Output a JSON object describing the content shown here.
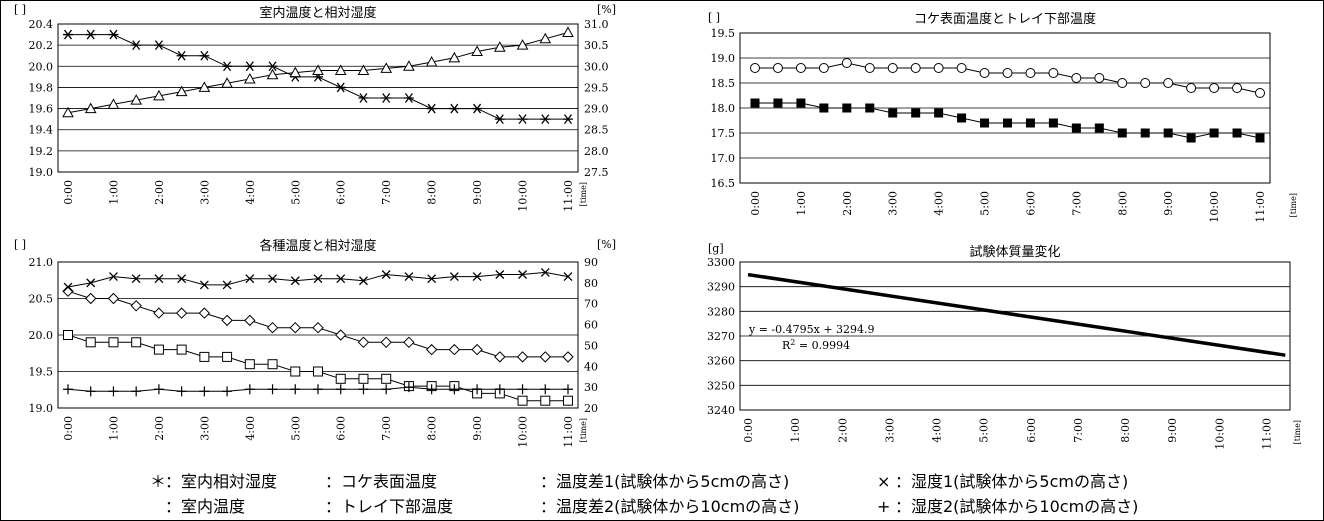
{
  "chart_data": [
    {
      "type": "line",
      "title": "室内温度と相対湿度",
      "ylabel_left": "[ ]",
      "ylabel_right": "[%]",
      "xlabel": "[time]",
      "x": [
        "0:00",
        "0:30",
        "1:00",
        "1:30",
        "2:00",
        "2:30",
        "3:00",
        "3:30",
        "4:00",
        "4:30",
        "5:00",
        "5:30",
        "6:00",
        "6:30",
        "7:00",
        "7:30",
        "8:00",
        "8:30",
        "9:00",
        "9:30",
        "10:00",
        "10:30",
        "11:00"
      ],
      "x_tick_labels": [
        "0:00",
        "1:00",
        "2:00",
        "3:00",
        "4:00",
        "5:00",
        "6:00",
        "7:00",
        "8:00",
        "9:00",
        "10:00",
        "11:00"
      ],
      "ylim_left": [
        19.0,
        20.4
      ],
      "ylim_right": [
        27.5,
        31.0
      ],
      "yticks_left": [
        "19.0",
        "19.2",
        "19.4",
        "19.6",
        "19.8",
        "20.0",
        "20.2",
        "20.4"
      ],
      "yticks_right": [
        "27.5",
        "28.0",
        "28.5",
        "29.0",
        "29.5",
        "30.0",
        "30.5",
        "31.0"
      ],
      "grid": true,
      "series": [
        {
          "marker": "asterisk",
          "axis": "left",
          "values": [
            20.3,
            20.3,
            20.3,
            20.2,
            20.2,
            20.1,
            20.1,
            20.0,
            20.0,
            20.0,
            19.9,
            19.9,
            19.8,
            19.7,
            19.7,
            19.7,
            19.6,
            19.6,
            19.6,
            19.5,
            19.5,
            19.5,
            19.5
          ]
        },
        {
          "marker": "triangle",
          "axis": "right",
          "values": [
            28.9,
            29.0,
            29.1,
            29.2,
            29.3,
            29.4,
            29.5,
            29.6,
            29.7,
            29.8,
            29.85,
            29.9,
            29.9,
            29.9,
            29.95,
            30.0,
            30.1,
            30.2,
            30.35,
            30.45,
            30.5,
            30.65,
            30.8
          ]
        }
      ]
    },
    {
      "type": "line",
      "title": "コケ表面温度とトレイ下部温度",
      "ylabel_left": "[ ]",
      "xlabel": "[time]",
      "x": [
        "0:00",
        "0:30",
        "1:00",
        "1:30",
        "2:00",
        "2:30",
        "3:00",
        "3:30",
        "4:00",
        "4:30",
        "5:00",
        "5:30",
        "6:00",
        "6:30",
        "7:00",
        "7:30",
        "8:00",
        "8:30",
        "9:00",
        "9:30",
        "10:00",
        "10:30",
        "11:00"
      ],
      "x_tick_labels": [
        "0:00",
        "1:00",
        "2:00",
        "3:00",
        "4:00",
        "5:00",
        "6:00",
        "7:00",
        "8:00",
        "9:00",
        "10:00",
        "11:00"
      ],
      "ylim_left": [
        16.5,
        19.5
      ],
      "yticks_left": [
        "16.5",
        "17.0",
        "17.5",
        "18.0",
        "18.5",
        "19.0",
        "19.5"
      ],
      "grid": true,
      "series": [
        {
          "marker": "circle-open",
          "axis": "left",
          "values": [
            18.8,
            18.8,
            18.8,
            18.8,
            18.9,
            18.8,
            18.8,
            18.8,
            18.8,
            18.8,
            18.7,
            18.7,
            18.7,
            18.7,
            18.6,
            18.6,
            18.5,
            18.5,
            18.5,
            18.4,
            18.4,
            18.4,
            18.3
          ]
        },
        {
          "marker": "square-filled",
          "axis": "left",
          "values": [
            18.1,
            18.1,
            18.1,
            18.0,
            18.0,
            18.0,
            17.9,
            17.9,
            17.9,
            17.8,
            17.7,
            17.7,
            17.7,
            17.7,
            17.6,
            17.6,
            17.5,
            17.5,
            17.5,
            17.4,
            17.5,
            17.5,
            17.4
          ]
        }
      ]
    },
    {
      "type": "line",
      "title": "各種温度と相対湿度",
      "ylabel_left": "[ ]",
      "ylabel_right": "[%]",
      "xlabel": "[time]",
      "x": [
        "0:00",
        "0:30",
        "1:00",
        "1:30",
        "2:00",
        "2:30",
        "3:00",
        "3:30",
        "4:00",
        "4:30",
        "5:00",
        "5:30",
        "6:00",
        "6:30",
        "7:00",
        "7:30",
        "8:00",
        "8:30",
        "9:00",
        "9:30",
        "10:00",
        "10:30",
        "11:00"
      ],
      "x_tick_labels": [
        "0:00",
        "1:00",
        "2:00",
        "3:00",
        "4:00",
        "5:00",
        "6:00",
        "7:00",
        "8:00",
        "9:00",
        "10:00",
        "11:00"
      ],
      "ylim_left": [
        19.0,
        21.0
      ],
      "ylim_right": [
        20,
        90
      ],
      "yticks_left": [
        "19.0",
        "19.5",
        "20.0",
        "20.5",
        "21.0"
      ],
      "yticks_right": [
        "20",
        "30",
        "40",
        "50",
        "60",
        "70",
        "80",
        "90"
      ],
      "grid": true,
      "series": [
        {
          "marker": "diamond-open",
          "axis": "left",
          "values": [
            20.6,
            20.5,
            20.5,
            20.4,
            20.3,
            20.3,
            20.3,
            20.2,
            20.2,
            20.1,
            20.1,
            20.1,
            20.0,
            19.9,
            19.9,
            19.9,
            19.8,
            19.8,
            19.8,
            19.7,
            19.7,
            19.7,
            19.7
          ]
        },
        {
          "marker": "square-open",
          "axis": "left",
          "values": [
            20.0,
            19.9,
            19.9,
            19.9,
            19.8,
            19.8,
            19.7,
            19.7,
            19.6,
            19.6,
            19.5,
            19.5,
            19.4,
            19.4,
            19.4,
            19.3,
            19.3,
            19.3,
            19.2,
            19.2,
            19.1,
            19.1,
            19.1
          ]
        },
        {
          "marker": "x",
          "axis": "right",
          "values": [
            78,
            80,
            83,
            82,
            82,
            82,
            79,
            79,
            82,
            82,
            81,
            82,
            82,
            81,
            84,
            83,
            82,
            83,
            83,
            84,
            84,
            85,
            83
          ]
        },
        {
          "marker": "plus",
          "axis": "right",
          "values": [
            29,
            28,
            28,
            28,
            29,
            28,
            28,
            28,
            29,
            29,
            29,
            29,
            29,
            29,
            29,
            30,
            29,
            29,
            29,
            29,
            29,
            29,
            29
          ]
        }
      ]
    },
    {
      "type": "line",
      "title": "試験体質量変化",
      "ylabel_left": "[g]",
      "xlabel": "[time]",
      "x_tick_labels": [
        "0:00",
        "1:00",
        "2:00",
        "3:00",
        "4:00",
        "5:00",
        "6:00",
        "7:00",
        "8:00",
        "9:00",
        "10:00",
        "11:00"
      ],
      "xlim_hours": [
        0,
        11.5
      ],
      "ylim_left": [
        3240,
        3300
      ],
      "yticks_left": [
        "3240",
        "3250",
        "3260",
        "3270",
        "3280",
        "3290",
        "3300"
      ],
      "grid": true,
      "series": [
        {
          "marker": "none",
          "axis": "left",
          "x_hours": [
            0,
            11.4
          ],
          "values": [
            3294.9,
            3262.2
          ]
        }
      ],
      "annotation": {
        "equation": "y = -0.4795x + 3294.9",
        "r2_prefix": "R",
        "r2_sup": "2",
        "r2_value": " = 0.9994"
      }
    }
  ],
  "legend": {
    "row1": [
      {
        "symbol": "＊",
        "label": "：室内相対湿度"
      },
      {
        "symbol": "",
        "label": "：コケ表面温度"
      },
      {
        "symbol": "",
        "label": "：温度差1(試験体から5cmの高さ)"
      },
      {
        "symbol": "×",
        "label": "：湿度1(試験体から5cmの高さ)"
      }
    ],
    "row2": [
      {
        "symbol": "",
        "label": "：室内温度"
      },
      {
        "symbol": "",
        "label": "：トレイ下部温度"
      },
      {
        "symbol": "",
        "label": "：温度差2(試験体から10cmの高さ)"
      },
      {
        "symbol": "+",
        "label": "：湿度2(試験体から10cmの高さ)"
      }
    ]
  }
}
